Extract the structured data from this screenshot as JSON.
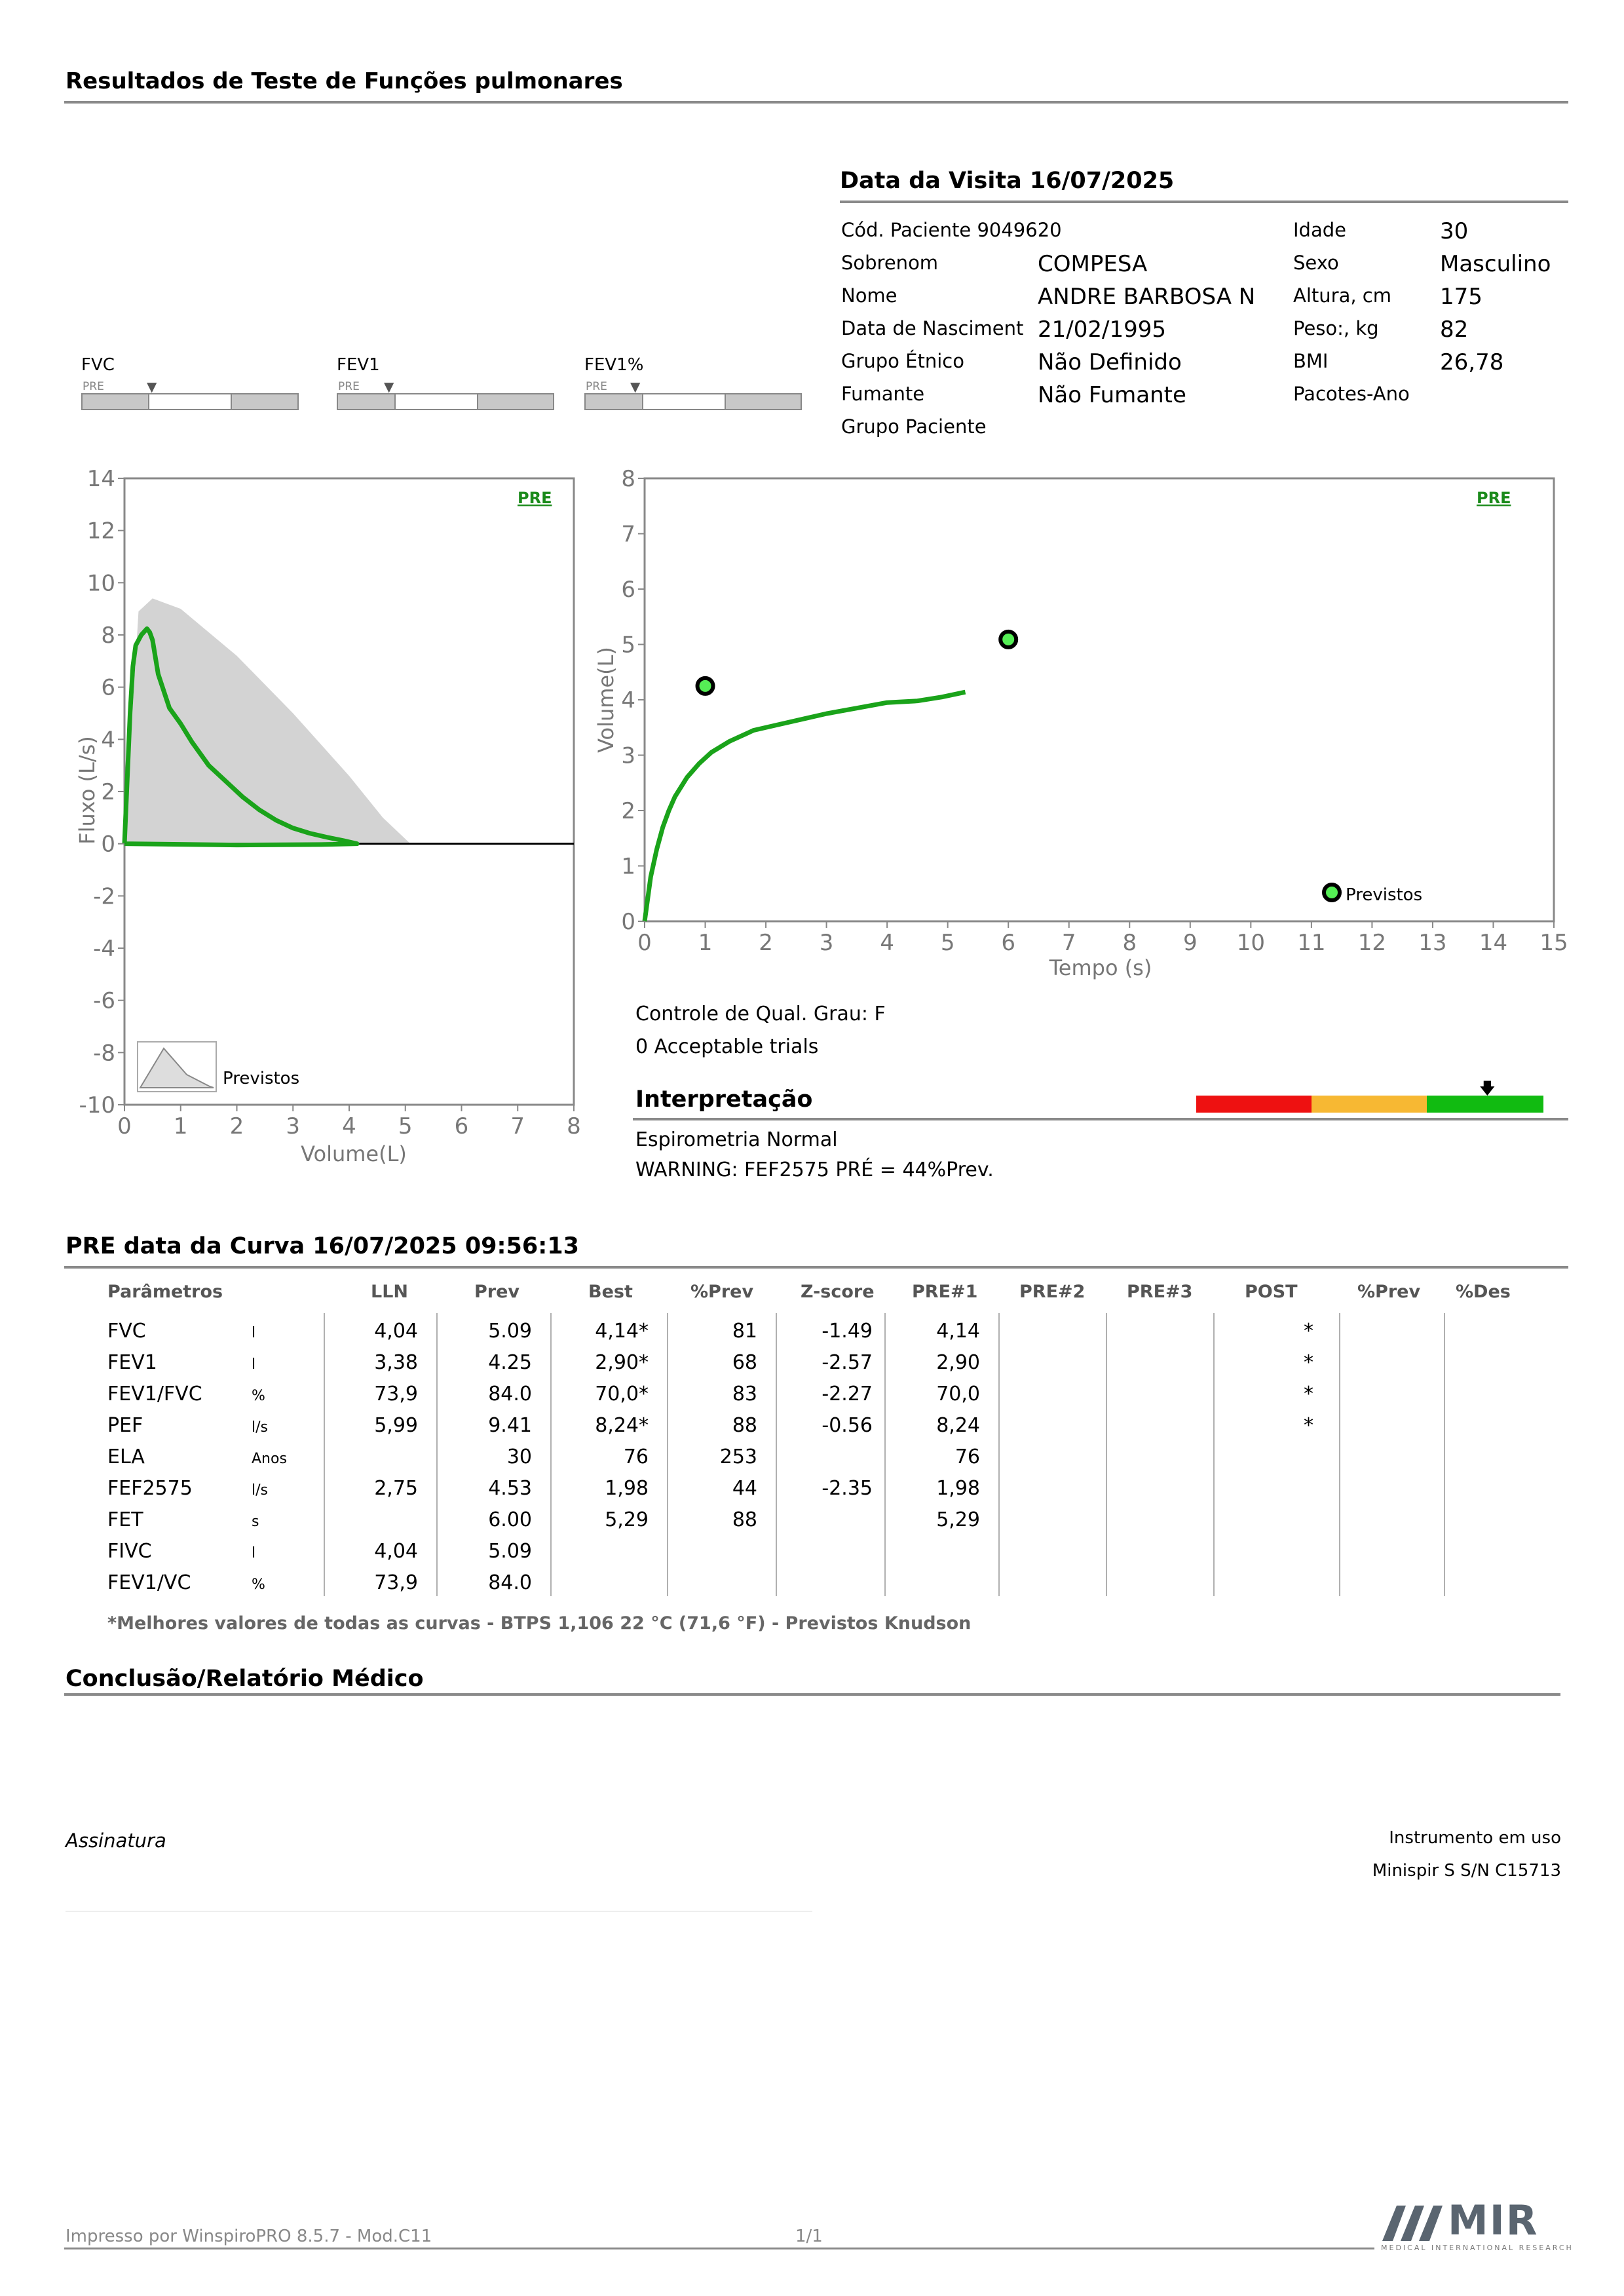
{
  "header": {
    "title": "Resultados de Teste de Funções pulmonares"
  },
  "visit": {
    "title": "Data da Visita 16/07/2025"
  },
  "patient": {
    "left": [
      {
        "label": "Cód. Paciente 9049620",
        "value": ""
      },
      {
        "label": "Sobrenom",
        "value": "COMPESA"
      },
      {
        "label": "Nome",
        "value": "ANDRE BARBOSA N"
      },
      {
        "label": "Data de Nasciment",
        "value": "21/02/1995"
      },
      {
        "label": "Grupo Étnico",
        "value": "Não Definido"
      },
      {
        "label": "Fumante",
        "value": "Não Fumante"
      },
      {
        "label": "Grupo Paciente",
        "value": ""
      }
    ],
    "right": [
      {
        "label": "Idade",
        "value": "30"
      },
      {
        "label": "Sexo",
        "value": "Masculino"
      },
      {
        "label": "Altura, cm",
        "value": "175"
      },
      {
        "label": "Peso:, kg",
        "value": "82"
      },
      {
        "label": "BMI",
        "value": "26,78"
      },
      {
        "label": "Pacotes-Ano",
        "value": ""
      }
    ]
  },
  "gauges": [
    {
      "label": "FVC",
      "tag": "PRE"
    },
    {
      "label": "FEV1",
      "tag": "PRE"
    },
    {
      "label": "FEV1%",
      "tag": "PRE"
    }
  ],
  "chart_data": [
    {
      "type": "line",
      "name": "flow-volume",
      "xlabel": "Volume(L)",
      "ylabel": "Fluxo (L/s)",
      "xlim": [
        0,
        8
      ],
      "ylim": [
        -10,
        14
      ],
      "xticks": [
        "0",
        "1",
        "2",
        "3",
        "4",
        "5",
        "6",
        "7",
        "8"
      ],
      "yticks": [
        "14",
        "12",
        "10",
        "8",
        "6",
        "4",
        "2",
        "0",
        "-2",
        "-4",
        "-6",
        "-8",
        "-10"
      ],
      "tag": "PRE",
      "legend": "Previstos",
      "predicted_area": {
        "x": [
          0,
          0.25,
          0.5,
          1.0,
          2.0,
          3.0,
          4.0,
          4.6,
          5.09
        ],
        "y": [
          0,
          8.9,
          9.4,
          9.0,
          7.2,
          5.0,
          2.6,
          1.0,
          0
        ]
      },
      "series": [
        {
          "name": "PRE",
          "color": "#1aa31a",
          "x": [
            0,
            0.05,
            0.1,
            0.15,
            0.2,
            0.3,
            0.4,
            0.45,
            0.5,
            0.6,
            0.8,
            1.0,
            1.2,
            1.5,
            1.8,
            2.1,
            2.4,
            2.7,
            3.0,
            3.3,
            3.6,
            3.9,
            4.14,
            3.5,
            2.0,
            0
          ],
          "y": [
            0,
            2.5,
            5.0,
            6.8,
            7.6,
            8.0,
            8.24,
            8.1,
            7.8,
            6.5,
            5.2,
            4.6,
            3.9,
            3.0,
            2.4,
            1.8,
            1.3,
            0.9,
            0.6,
            0.4,
            0.25,
            0.12,
            0,
            -0.03,
            -0.05,
            0
          ]
        }
      ]
    },
    {
      "type": "line",
      "name": "volume-time",
      "xlabel": "Tempo (s)",
      "ylabel": "Volume(L)",
      "xlim": [
        0,
        15
      ],
      "ylim": [
        0,
        8
      ],
      "xticks": [
        "0",
        "1",
        "2",
        "3",
        "4",
        "5",
        "6",
        "7",
        "8",
        "9",
        "10",
        "11",
        "12",
        "13",
        "14",
        "15"
      ],
      "yticks": [
        "8",
        "7",
        "6",
        "5",
        "4",
        "3",
        "2",
        "1",
        "0"
      ],
      "tag": "PRE",
      "legend": "Previstos",
      "predicted_points": {
        "x": [
          1.0,
          6.0
        ],
        "y": [
          4.25,
          5.09
        ]
      },
      "series": [
        {
          "name": "PRE",
          "color": "#1aa31a",
          "x": [
            0,
            0.1,
            0.2,
            0.3,
            0.4,
            0.5,
            0.7,
            0.9,
            1.1,
            1.4,
            1.8,
            2.2,
            2.6,
            3.0,
            3.5,
            4.0,
            4.5,
            4.9,
            5.29
          ],
          "y": [
            0,
            0.8,
            1.3,
            1.7,
            2.0,
            2.25,
            2.6,
            2.85,
            3.05,
            3.25,
            3.45,
            3.55,
            3.65,
            3.75,
            3.85,
            3.95,
            3.98,
            4.05,
            4.14
          ]
        }
      ]
    }
  ],
  "quality": {
    "line1": "Controle de Qual. Grau: F",
    "line2": "0 Acceptable trials"
  },
  "interpretation": {
    "title": "Interpretação",
    "line1": "Espirometria Normal",
    "line2": "WARNING: FEF2575 PRÉ = 44%Prev.",
    "scale_colors": [
      "#ee1111",
      "#f7b833",
      "#11bb11"
    ]
  },
  "curve": {
    "title": "PRE data da Curva 16/07/2025   09:56:13"
  },
  "table": {
    "headers": [
      "Parâmetros",
      "LLN",
      "Prev",
      "Best",
      "%Prev",
      "Z-score",
      "PRE#1",
      "PRE#2",
      "PRE#3",
      "POST",
      "%Prev",
      "%Des"
    ],
    "rows": [
      {
        "p": "FVC",
        "u": "l",
        "lln": "4,04",
        "prev": "5.09",
        "best": "4,14*",
        "pp": "81",
        "z": "-1.49",
        "pre1": "4,14",
        "post": "*"
      },
      {
        "p": "FEV1",
        "u": "l",
        "lln": "3,38",
        "prev": "4.25",
        "best": "2,90*",
        "pp": "68",
        "z": "-2.57",
        "pre1": "2,90",
        "post": "*"
      },
      {
        "p": "FEV1/FVC",
        "u": "%",
        "lln": "73,9",
        "prev": "84.0",
        "best": "70,0*",
        "pp": "83",
        "z": "-2.27",
        "pre1": "70,0",
        "post": "*"
      },
      {
        "p": "PEF",
        "u": "l/s",
        "lln": "5,99",
        "prev": "9.41",
        "best": "8,24*",
        "pp": "88",
        "z": "-0.56",
        "pre1": "8,24",
        "post": "*"
      },
      {
        "p": "ELA",
        "u": "Anos",
        "lln": "",
        "prev": "30",
        "best": "76",
        "pp": "253",
        "z": "",
        "pre1": "76",
        "post": ""
      },
      {
        "p": "FEF2575",
        "u": "l/s",
        "lln": "2,75",
        "prev": "4.53",
        "best": "1,98",
        "pp": "44",
        "z": "-2.35",
        "pre1": "1,98",
        "post": ""
      },
      {
        "p": "FET",
        "u": "s",
        "lln": "",
        "prev": "6.00",
        "best": "5,29",
        "pp": "88",
        "z": "",
        "pre1": "5,29",
        "post": ""
      },
      {
        "p": "FIVC",
        "u": "l",
        "lln": "4,04",
        "prev": "5.09",
        "best": "",
        "pp": "",
        "z": "",
        "pre1": "",
        "post": ""
      },
      {
        "p": "FEV1/VC",
        "u": "%",
        "lln": "73,9",
        "prev": "84.0",
        "best": "",
        "pp": "",
        "z": "",
        "pre1": "",
        "post": ""
      }
    ],
    "footnote": "*Melhores valores de todas as curvas - BTPS  1,106  22 °C  (71,6 °F) - Previstos Knudson"
  },
  "conclusion": {
    "title": "Conclusão/Relatório Médico"
  },
  "signature": "Assinatura",
  "instrument": {
    "label": "Instrumento em uso",
    "value": "Minispir S S/N C15713"
  },
  "footer": {
    "printed": "Impresso por WinspiroPRO  8.5.7 - Mod.C11",
    "page": "1/1",
    "logo_text": "MIR",
    "logo_sub": "MEDICAL INTERNATIONAL RESEARCH"
  }
}
